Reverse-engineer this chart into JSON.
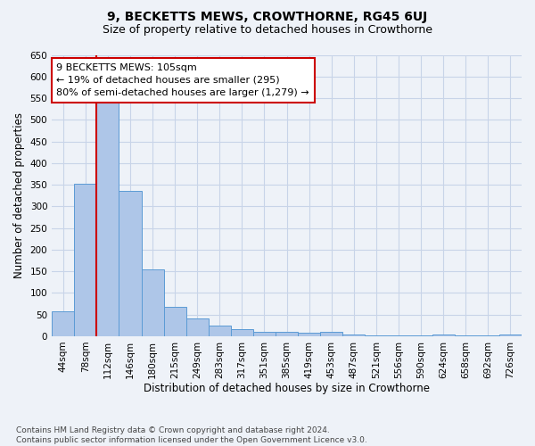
{
  "title": "9, BECKETTS MEWS, CROWTHORNE, RG45 6UJ",
  "subtitle": "Size of property relative to detached houses in Crowthorne",
  "xlabel": "Distribution of detached houses by size in Crowthorne",
  "ylabel": "Number of detached properties",
  "categories": [
    "44sqm",
    "78sqm",
    "112sqm",
    "146sqm",
    "180sqm",
    "215sqm",
    "249sqm",
    "283sqm",
    "317sqm",
    "351sqm",
    "385sqm",
    "419sqm",
    "453sqm",
    "487sqm",
    "521sqm",
    "556sqm",
    "590sqm",
    "624sqm",
    "658sqm",
    "692sqm",
    "726sqm"
  ],
  "values": [
    57,
    352,
    540,
    335,
    155,
    67,
    42,
    25,
    17,
    10,
    10,
    9,
    10,
    5,
    3,
    3,
    3,
    5,
    3,
    3,
    5
  ],
  "bar_color": "#aec6e8",
  "bar_edgecolor": "#5b9bd5",
  "grid_color": "#c8d4e8",
  "background_color": "#eef2f8",
  "annotation_box_text": "9 BECKETTS MEWS: 105sqm\n← 19% of detached houses are smaller (295)\n80% of semi-detached houses are larger (1,279) →",
  "annotation_box_edgecolor": "#cc0000",
  "annotation_box_facecolor": "#ffffff",
  "vline_color": "#cc0000",
  "ylim": [
    0,
    650
  ],
  "yticks": [
    0,
    50,
    100,
    150,
    200,
    250,
    300,
    350,
    400,
    450,
    500,
    550,
    600,
    650
  ],
  "footnote": "Contains HM Land Registry data © Crown copyright and database right 2024.\nContains public sector information licensed under the Open Government Licence v3.0.",
  "title_fontsize": 10,
  "subtitle_fontsize": 9,
  "xlabel_fontsize": 8.5,
  "ylabel_fontsize": 8.5,
  "tick_fontsize": 7.5,
  "annotation_fontsize": 8,
  "footnote_fontsize": 6.5
}
